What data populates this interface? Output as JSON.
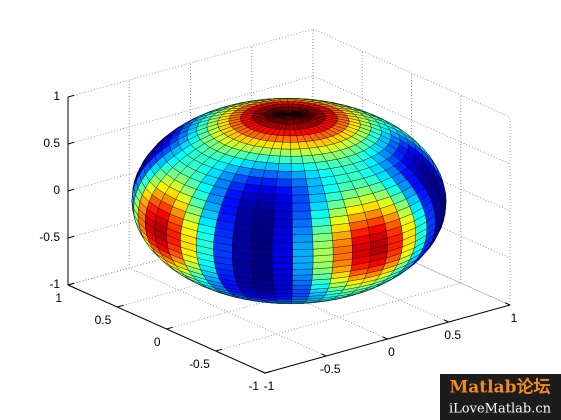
{
  "chart_data": {
    "type": "surface",
    "colormap": "jet",
    "grid": true,
    "xlim": [
      -1,
      1
    ],
    "ylim": [
      -1,
      1
    ],
    "zlim": [
      -1,
      1
    ],
    "xticks": [
      -1,
      -0.5,
      0,
      0.5,
      1
    ],
    "yticks": [
      -1,
      -0.5,
      0,
      0.5,
      1
    ],
    "zticks": [
      -1,
      -0.5,
      0,
      0.5,
      1
    ],
    "annotations": [
      "Matlab论坛",
      "iLoveMatlab.cn"
    ]
  }
}
